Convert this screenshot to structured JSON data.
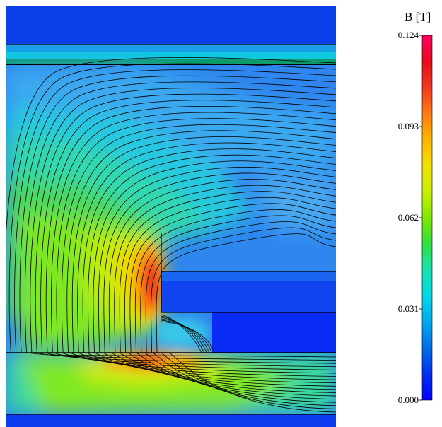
{
  "title": "B [T]",
  "colorbar": {
    "min": 0.0,
    "max": 0.124,
    "ticks": [
      "0.124",
      "0.093",
      "0.062",
      "0.031",
      "0.000"
    ],
    "stops": [
      "#0000ff",
      "#0030f0",
      "#006ee8",
      "#00aaf0",
      "#00d8e6",
      "#18e3b0",
      "#2fe040",
      "#7fe800",
      "#c8f000",
      "#f2e200",
      "#ffb400",
      "#ff7a14",
      "#f03820",
      "#e80a1e",
      "#ff0060"
    ]
  },
  "field_plot": {
    "background_color": "#2e86ee",
    "peak_color": "#e61a1a",
    "line_color": "#000000"
  }
}
